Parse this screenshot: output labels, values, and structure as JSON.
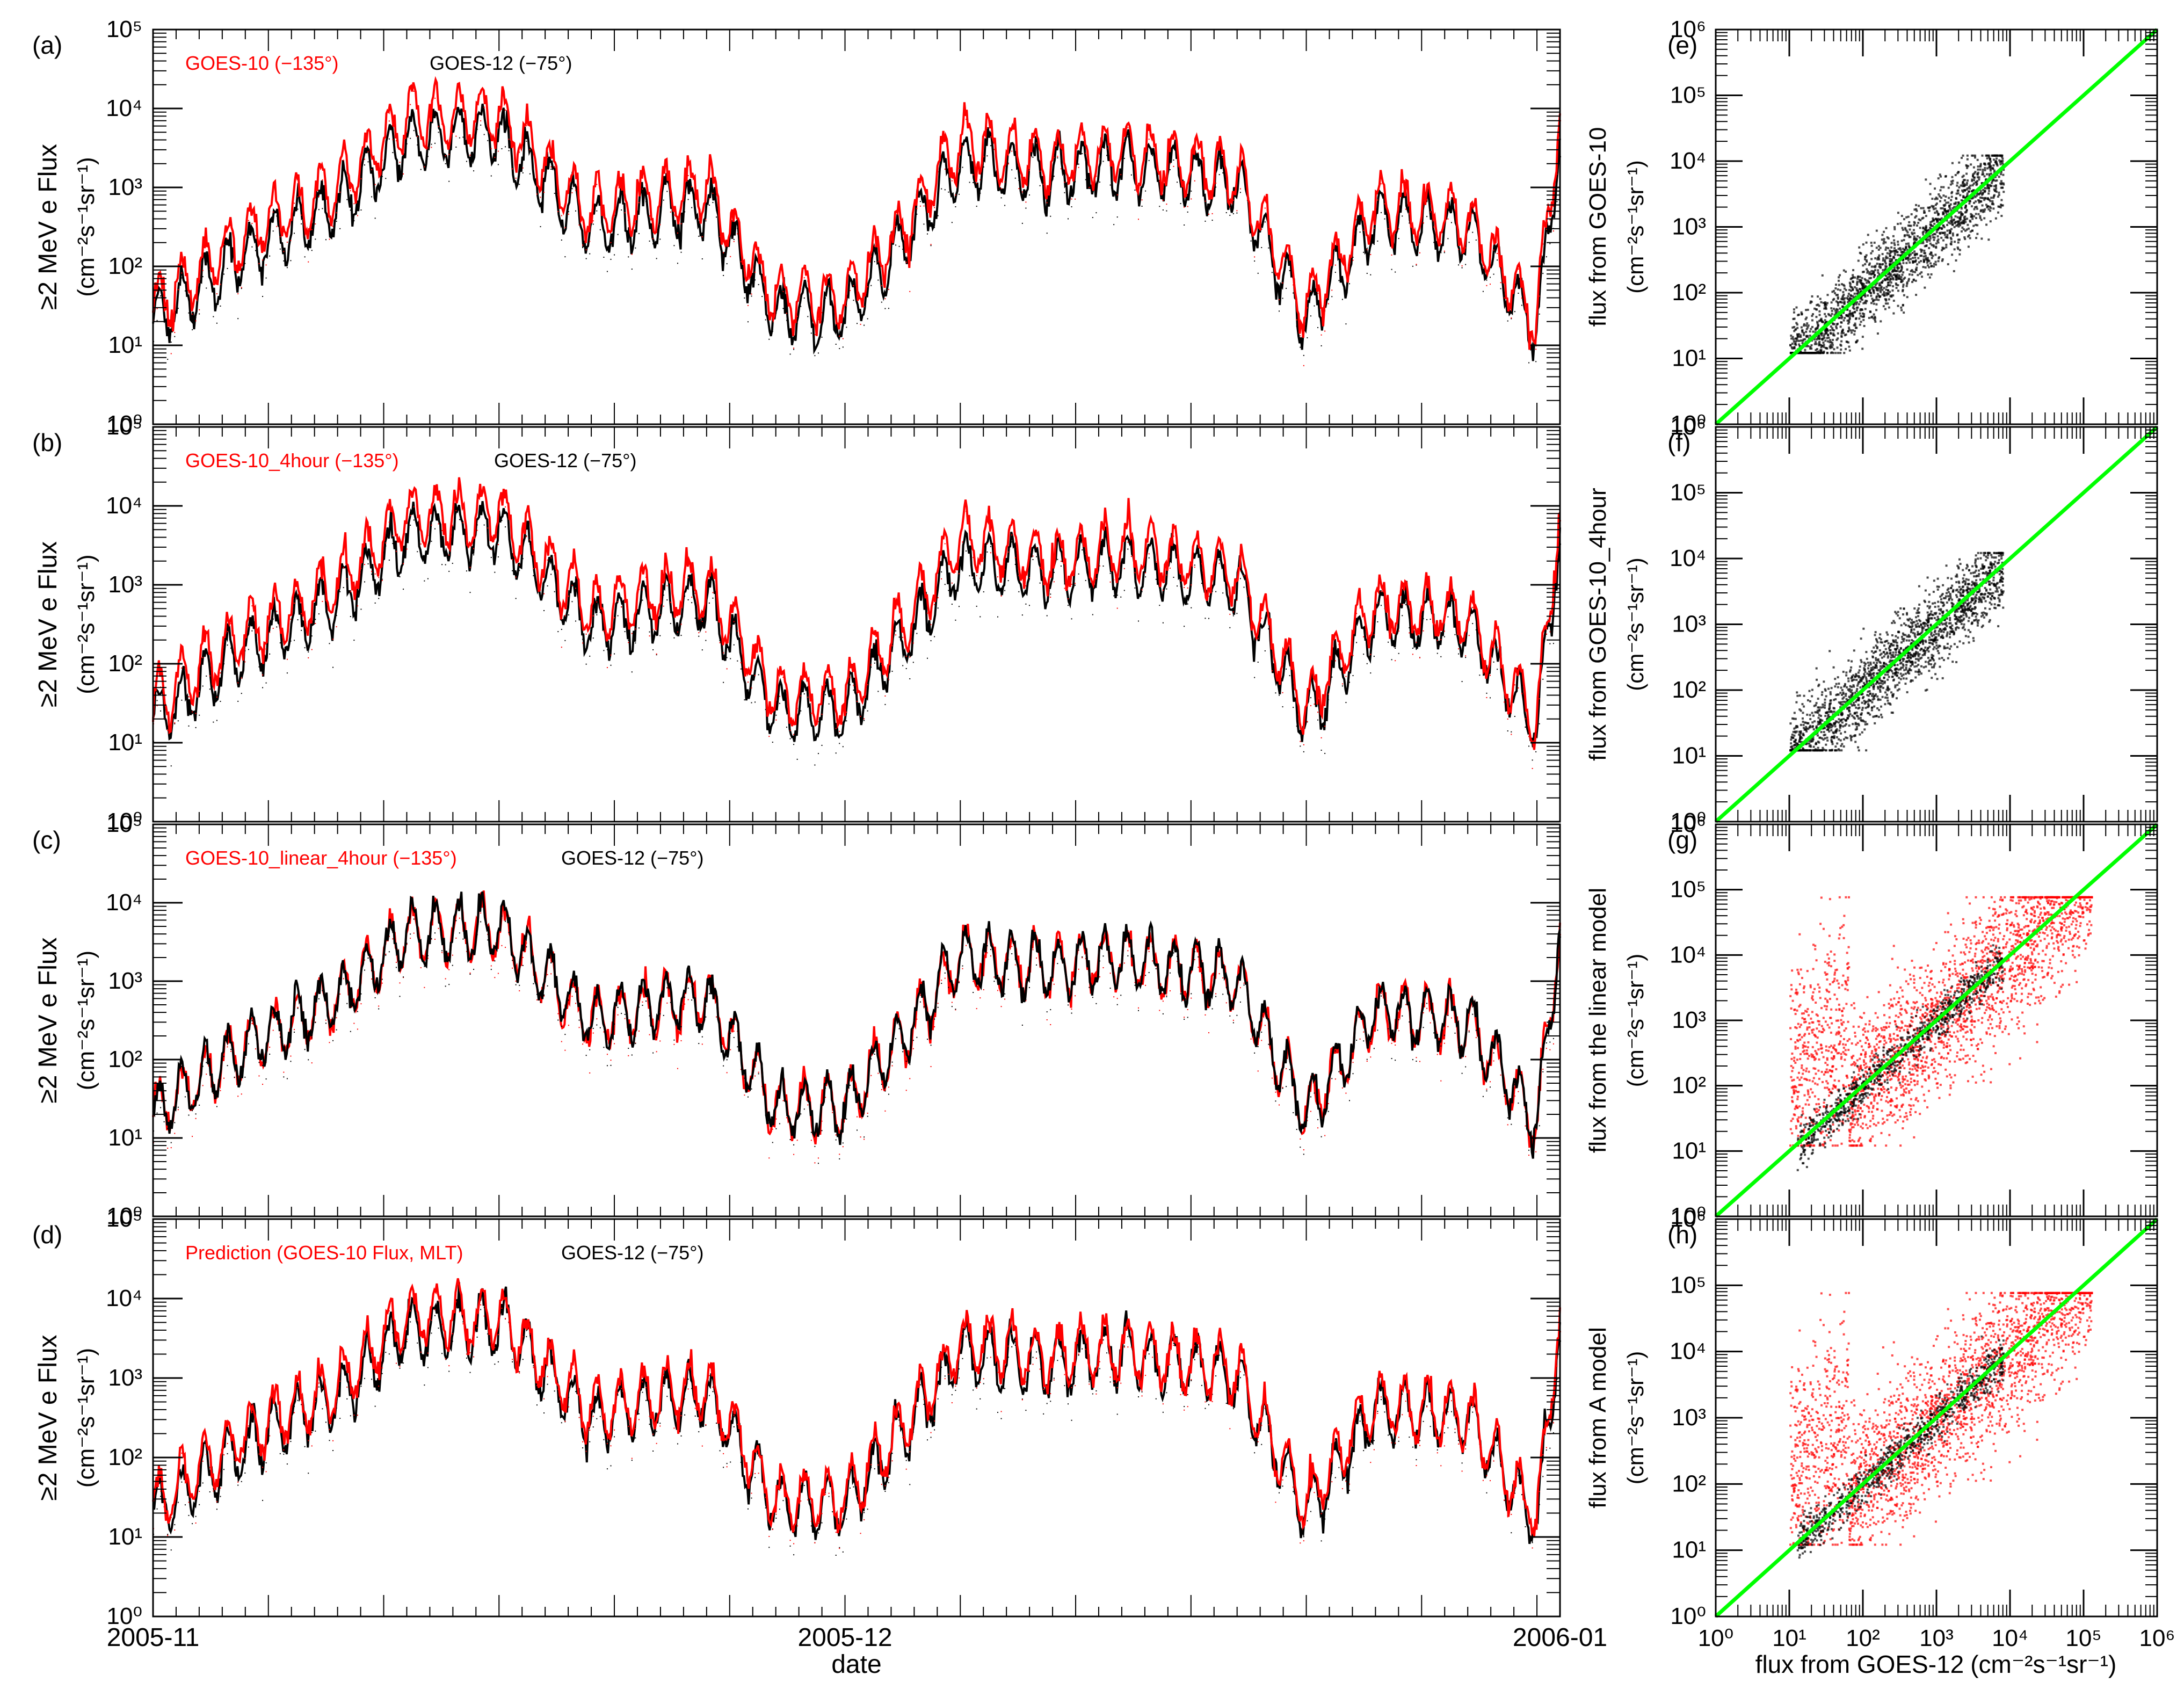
{
  "colors": {
    "goes10": "#ff0000",
    "goes12": "#000000",
    "diagonal": "#00ff00",
    "axis": "#000000"
  },
  "chart_data": [
    {
      "panel": "(a)",
      "type": "line",
      "ylabel": "≥2 MeV e Flux",
      "yunits": "(cm⁻²s⁻¹sr⁻¹)",
      "yscale": "log",
      "ylim": [
        1,
        100000
      ],
      "yticks": [
        "10⁰",
        "10¹",
        "10²",
        "10³",
        "10⁴",
        "10⁵"
      ],
      "xlim": [
        "2005-11-01",
        "2006-01-01"
      ],
      "legend": [
        {
          "label": "GOES-10 (−135°)",
          "color": "#ff0000"
        },
        {
          "label": "GOES-12 (−75°)",
          "color": "#000000"
        }
      ],
      "series": [
        {
          "name": "GOES-10 (−135°)",
          "day": [
            0,
            4,
            8,
            11,
            15,
            19,
            22,
            24,
            27,
            30,
            33,
            35,
            39,
            42,
            47,
            50,
            53,
            57,
            60,
            61
          ],
          "values": [
            30,
            250,
            1000,
            8000,
            8000,
            500,
            800,
            1000,
            40,
            40,
            500,
            4000,
            2000,
            3000,
            1500,
            30,
            600,
            400,
            20,
            10000
          ]
        },
        {
          "name": "GOES-12 (−75°)",
          "day": [
            0,
            4,
            8,
            11,
            15,
            19,
            22,
            24,
            27,
            30,
            33,
            35,
            39,
            42,
            47,
            50,
            53,
            57,
            60,
            61
          ],
          "values": [
            20,
            150,
            600,
            4000,
            5000,
            300,
            500,
            600,
            25,
            25,
            300,
            2000,
            1500,
            2000,
            1000,
            20,
            400,
            300,
            15,
            5000
          ]
        }
      ]
    },
    {
      "panel": "(b)",
      "type": "line",
      "ylabel": "≥2 MeV e Flux",
      "yunits": "(cm⁻²s⁻¹sr⁻¹)",
      "yscale": "log",
      "ylim": [
        1,
        100000
      ],
      "yticks": [
        "10⁰",
        "10¹",
        "10²",
        "10³",
        "10⁴",
        "10⁵"
      ],
      "xlim": [
        "2005-11-01",
        "2006-01-01"
      ],
      "legend": [
        {
          "label": "GOES-10_4hour (−135°)",
          "color": "#ff0000"
        },
        {
          "label": "GOES-12 (−75°)",
          "color": "#000000"
        }
      ],
      "series": [
        {
          "name": "GOES-10_4hour (−135°)",
          "day": [
            0,
            4,
            8,
            11,
            15,
            19,
            22,
            24,
            27,
            30,
            33,
            35,
            39,
            42,
            47,
            50,
            53,
            57,
            60,
            61
          ],
          "values": [
            30,
            250,
            1000,
            8000,
            8000,
            500,
            800,
            1000,
            40,
            40,
            500,
            4000,
            2000,
            3000,
            1500,
            30,
            600,
            400,
            20,
            10000
          ]
        },
        {
          "name": "GOES-12 (−75°)",
          "day": [
            0,
            4,
            8,
            11,
            15,
            19,
            22,
            24,
            27,
            30,
            33,
            35,
            39,
            42,
            47,
            50,
            53,
            57,
            60,
            61
          ],
          "values": [
            20,
            150,
            600,
            4000,
            5000,
            300,
            500,
            600,
            25,
            25,
            300,
            2000,
            1500,
            2000,
            1000,
            20,
            400,
            300,
            15,
            5000
          ]
        }
      ]
    },
    {
      "panel": "(c)",
      "type": "line",
      "ylabel": "≥2 MeV e Flux",
      "yunits": "(cm⁻²s⁻¹sr⁻¹)",
      "yscale": "log",
      "ylim": [
        1,
        100000
      ],
      "yticks": [
        "10⁰",
        "10¹",
        "10²",
        "10³",
        "10⁴",
        "10⁵"
      ],
      "xlim": [
        "2005-11-01",
        "2006-01-01"
      ],
      "legend": [
        {
          "label": "GOES-10_linear_4hour (−135°)",
          "color": "#ff0000"
        },
        {
          "label": "GOES-12 (−75°)",
          "color": "#000000"
        }
      ],
      "series": [
        {
          "name": "GOES-10_linear_4hour (−135°)",
          "day": [
            0,
            4,
            8,
            11,
            15,
            19,
            22,
            24,
            27,
            30,
            33,
            35,
            39,
            42,
            47,
            50,
            53,
            57,
            60,
            61
          ],
          "values": [
            20,
            150,
            600,
            4000,
            5000,
            300,
            500,
            600,
            25,
            25,
            300,
            2000,
            1500,
            2000,
            1000,
            20,
            400,
            300,
            15,
            5000
          ]
        },
        {
          "name": "GOES-12 (−75°)",
          "day": [
            0,
            4,
            8,
            11,
            15,
            19,
            22,
            24,
            27,
            30,
            33,
            35,
            39,
            42,
            47,
            50,
            53,
            57,
            60,
            61
          ],
          "values": [
            20,
            150,
            600,
            4000,
            5000,
            300,
            500,
            600,
            25,
            25,
            300,
            2000,
            1500,
            2000,
            1000,
            20,
            400,
            300,
            15,
            5000
          ]
        }
      ]
    },
    {
      "panel": "(d)",
      "type": "line",
      "ylabel": "≥2 MeV e Flux",
      "yunits": "(cm⁻²s⁻¹sr⁻¹)",
      "yscale": "log",
      "ylim": [
        1,
        100000
      ],
      "yticks": [
        "10⁰",
        "10¹",
        "10²",
        "10³",
        "10⁴",
        "10⁵"
      ],
      "xlabel": "date",
      "xlim": [
        "2005-11-01",
        "2006-01-01"
      ],
      "xticks": [
        "2005-11",
        "2005-12",
        "2006-01"
      ],
      "legend": [
        {
          "label": "Prediction (GOES-10 Flux, MLT)",
          "color": "#ff0000"
        },
        {
          "label": "GOES-12 (−75°)",
          "color": "#000000"
        }
      ],
      "series": [
        {
          "name": "Prediction (GOES-10 Flux, MLT)",
          "day": [
            0,
            4,
            8,
            11,
            15,
            19,
            22,
            24,
            27,
            30,
            33,
            35,
            39,
            42,
            47,
            50,
            53,
            57,
            60,
            61
          ],
          "values": [
            25,
            200,
            800,
            6000,
            6000,
            400,
            600,
            800,
            30,
            30,
            400,
            3000,
            1800,
            2500,
            1200,
            25,
            500,
            350,
            18,
            7000
          ]
        },
        {
          "name": "GOES-12 (−75°)",
          "day": [
            0,
            4,
            8,
            11,
            15,
            19,
            22,
            24,
            27,
            30,
            33,
            35,
            39,
            42,
            47,
            50,
            53,
            57,
            60,
            61
          ],
          "values": [
            20,
            150,
            600,
            4000,
            5000,
            300,
            500,
            600,
            25,
            25,
            300,
            2000,
            1500,
            2000,
            1000,
            20,
            400,
            300,
            15,
            5000
          ]
        }
      ]
    },
    {
      "panel": "(e)",
      "type": "scatter",
      "xscale": "log",
      "yscale": "log",
      "xlim": [
        1,
        1000000
      ],
      "ylim": [
        1,
        1000000
      ],
      "ylabel": "flux from GOES-10",
      "yunits": "(cm⁻²s⁻¹sr⁻¹)",
      "yticks": [
        "10⁰",
        "10¹",
        "10²",
        "10³",
        "10⁴",
        "10⁵",
        "10⁶"
      ],
      "point_color": "#000000",
      "reference_line": "y = x",
      "cloud": {
        "x_range": [
          10,
          10000
        ],
        "y_range": [
          8,
          12000
        ]
      }
    },
    {
      "panel": "(f)",
      "type": "scatter",
      "xscale": "log",
      "yscale": "log",
      "xlim": [
        1,
        1000000
      ],
      "ylim": [
        1,
        1000000
      ],
      "ylabel": "flux from GOES-10_4hour",
      "yunits": "(cm⁻²s⁻¹sr⁻¹)",
      "yticks": [
        "10⁰",
        "10¹",
        "10²",
        "10³",
        "10⁴",
        "10⁵",
        "10⁶"
      ],
      "point_color": "#000000",
      "reference_line": "y = x",
      "cloud": {
        "x_range": [
          10,
          10000
        ],
        "y_range": [
          8,
          12000
        ]
      }
    },
    {
      "panel": "(g)",
      "type": "scatter",
      "xscale": "log",
      "yscale": "log",
      "xlim": [
        1,
        1000000
      ],
      "ylim": [
        1,
        1000000
      ],
      "ylabel": "flux from the linear model",
      "yunits": "(cm⁻²s⁻¹sr⁻¹)",
      "yticks": [
        "10⁰",
        "10¹",
        "10²",
        "10³",
        "10⁴",
        "10⁵",
        "10⁶"
      ],
      "point_color": "#ff0000",
      "core_color": "#000000",
      "reference_line": "y = x",
      "cloud": {
        "x_range": [
          5,
          100000
        ],
        "y_range": [
          5,
          80000
        ]
      }
    },
    {
      "panel": "(h)",
      "type": "scatter",
      "xscale": "log",
      "yscale": "log",
      "xlim": [
        1,
        1000000
      ],
      "ylim": [
        1,
        1000000
      ],
      "xlabel": "flux from GOES-12",
      "xunits": "(cm⁻²s⁻¹sr⁻¹)",
      "ylabel": "flux from A model",
      "yunits": "(cm⁻²s⁻¹sr⁻¹)",
      "xticks": [
        "10⁰",
        "10¹",
        "10²",
        "10³",
        "10⁴",
        "10⁵",
        "10⁶"
      ],
      "yticks": [
        "10⁰",
        "10¹",
        "10²",
        "10³",
        "10⁴",
        "10⁵",
        "10⁶"
      ],
      "point_color": "#ff0000",
      "core_color": "#000000",
      "reference_line": "y = x",
      "cloud": {
        "x_range": [
          10,
          150000
        ],
        "y_range": [
          10,
          150000
        ]
      }
    }
  ]
}
